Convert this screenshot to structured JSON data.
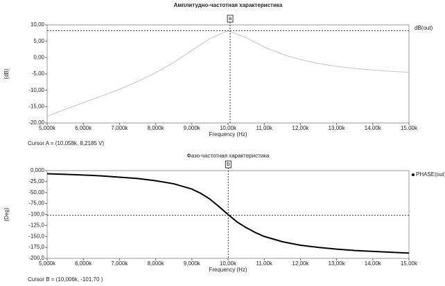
{
  "chart_data": [
    {
      "type": "line",
      "title": "Амплитудно-частотная характеристика",
      "title_bold": true,
      "xlabel": "Frequency (Hz)",
      "ylabel": "(dB)",
      "x": [
        5000,
        5500,
        6000,
        6500,
        7000,
        7500,
        8000,
        8500,
        9000,
        9500,
        10000,
        10500,
        11000,
        11500,
        12000,
        12500,
        13000,
        13500,
        14000,
        14500,
        15000
      ],
      "series": [
        {
          "name": "dB(out)",
          "color": "#c4c4c4",
          "width": 1,
          "marker": false,
          "values": [
            -18,
            -15.8,
            -13.8,
            -11.8,
            -9.7,
            -7.3,
            -4.6,
            -1.5,
            2.2,
            5.8,
            8.2,
            6.1,
            3.2,
            1.0,
            -0.6,
            -1.8,
            -2.7,
            -3.3,
            -3.8,
            -4.2,
            -4.5
          ]
        }
      ],
      "xlim": [
        5000,
        15000
      ],
      "xticks": [
        {
          "value": 5000,
          "label": "5,000k"
        },
        {
          "value": 6000,
          "label": "6,000k"
        },
        {
          "value": 7000,
          "label": "7,000k"
        },
        {
          "value": 8000,
          "label": "8,000k"
        },
        {
          "value": 9000,
          "label": "9,000k"
        },
        {
          "value": 10000,
          "label": "10,00k"
        },
        {
          "value": 11000,
          "label": "11,00k"
        },
        {
          "value": 12000,
          "label": "12,00k"
        },
        {
          "value": 13000,
          "label": "13,00k"
        },
        {
          "value": 14000,
          "label": "14,00k"
        },
        {
          "value": 15000,
          "label": "15,00k"
        }
      ],
      "ylim": [
        -20,
        10
      ],
      "yticks": [
        {
          "value": 10,
          "label": "10,00"
        },
        {
          "value": 5,
          "label": "5,00"
        },
        {
          "value": 0,
          "label": "0,00"
        },
        {
          "value": -5,
          "label": "-5,00"
        },
        {
          "value": -10,
          "label": "-10,00"
        },
        {
          "value": -15,
          "label": "-15,00"
        },
        {
          "value": -20,
          "label": "-20,00"
        }
      ],
      "cursor": {
        "label": "a",
        "x": 10058,
        "y": 8.2185,
        "text": "Cursor A = (10,058k, 8,2185 V)"
      }
    },
    {
      "type": "line",
      "title": "Фазо-частотная характеристика",
      "title_bold": false,
      "xlabel": "Frequency (Hz)",
      "ylabel": "(Deg)",
      "x": [
        5000,
        5500,
        6000,
        6500,
        7000,
        7500,
        8000,
        8500,
        9000,
        9250,
        9500,
        9750,
        10000,
        10250,
        10500,
        10750,
        11000,
        11500,
        12000,
        12500,
        13000,
        13500,
        14000,
        14500,
        15000
      ],
      "series": [
        {
          "name": "PHASE(out)",
          "color": "#000000",
          "width": 2,
          "marker": true,
          "values": [
            -7,
            -8.5,
            -10,
            -12,
            -15,
            -18,
            -23,
            -30,
            -42,
            -52,
            -65,
            -82,
            -100,
            -117,
            -130,
            -141,
            -150,
            -162,
            -170,
            -175,
            -179,
            -182,
            -184,
            -186,
            -188
          ]
        }
      ],
      "xlim": [
        5000,
        15000
      ],
      "xticks": [
        {
          "value": 5000,
          "label": "5,000k"
        },
        {
          "value": 6000,
          "label": "6,000k"
        },
        {
          "value": 7000,
          "label": "7,000k"
        },
        {
          "value": 8000,
          "label": "8,000k"
        },
        {
          "value": 9000,
          "label": "9,000k"
        },
        {
          "value": 10000,
          "label": "10,00k"
        },
        {
          "value": 11000,
          "label": "11,00k"
        },
        {
          "value": 12000,
          "label": "12,00k"
        },
        {
          "value": 13000,
          "label": "13,00k"
        },
        {
          "value": 14000,
          "label": "14,00k"
        },
        {
          "value": 15000,
          "label": "15,00k"
        }
      ],
      "ylim": [
        -200,
        0
      ],
      "yticks": [
        {
          "value": 0,
          "label": "0,000"
        },
        {
          "value": -25,
          "label": "-25,00"
        },
        {
          "value": -50,
          "label": "-50,00"
        },
        {
          "value": -75,
          "label": "-75,00"
        },
        {
          "value": -100,
          "label": "-100,0"
        },
        {
          "value": -125,
          "label": "-125,0"
        },
        {
          "value": -150,
          "label": "-150,0"
        },
        {
          "value": -175,
          "label": "-175,0"
        },
        {
          "value": -200,
          "label": "-200,0"
        }
      ],
      "cursor": {
        "label": "b",
        "x": 10006,
        "y": -101.7,
        "text": "Cursor B = (10,006k, -101,70 )"
      }
    }
  ]
}
